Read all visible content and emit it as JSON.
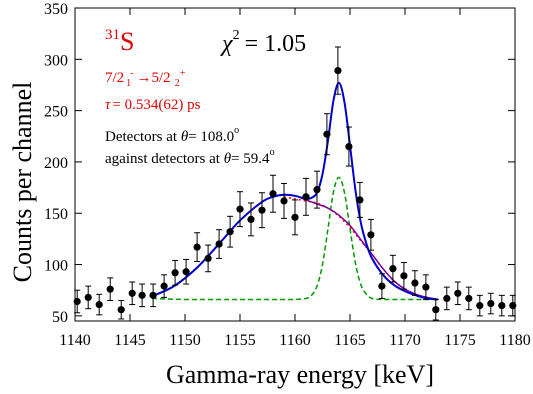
{
  "chart_data": {
    "type": "scatter",
    "xlabel": "Gamma-ray energy [keV]",
    "ylabel": "Counts per channel",
    "xlim": [
      1140,
      1180
    ],
    "ylim": [
      45,
      350
    ],
    "xticks": [
      1140,
      1145,
      1150,
      1155,
      1160,
      1165,
      1170,
      1175,
      1180
    ],
    "yticks": [
      50,
      100,
      150,
      200,
      250,
      300,
      350
    ],
    "grid": false,
    "annotations": {
      "nucleus_mass": "31",
      "nucleus_symbol": "S",
      "transition_a": "7/2",
      "transition_a_sub": "1",
      "transition_a_sup": "-",
      "arrow": "→",
      "transition_b": "5/2",
      "transition_b_sub": "2",
      "transition_b_sup": "+",
      "tau_symbol": "τ",
      "tau_value": "= 0.534(62) ps",
      "chi_symbol": "χ",
      "chi_exp": "2",
      "chi_value": "= 1.05",
      "det_line1_prefix": "Detectors at ",
      "det_line1_theta": "θ",
      "det_line1_value": "= 108.0",
      "det_line1_deg": "o",
      "det_line2_prefix": "against detectors at ",
      "det_line2_theta": "θ",
      "det_line2_value": "= 59.4",
      "det_line2_deg": "o"
    },
    "colors": {
      "total_fit": "#0000cc",
      "background": "#7a0099",
      "dsam_component": "#ff0000",
      "peak_component": "#009900",
      "data": "#000000",
      "annotation_red": "#e00000"
    },
    "series": [
      {
        "key": "data",
        "kind": "points_with_errors",
        "x": [
          1140.2,
          1141.2,
          1142.2,
          1143.2,
          1144.2,
          1145.2,
          1146.1,
          1147.1,
          1148.1,
          1149.1,
          1150.1,
          1151.1,
          1152.1,
          1153.1,
          1154.1,
          1155.0,
          1156.0,
          1157.0,
          1158.0,
          1159.0,
          1160.0,
          1161.0,
          1162.0,
          1162.9,
          1163.9,
          1164.9,
          1165.9,
          1166.9,
          1167.9,
          1168.9,
          1169.9,
          1170.9,
          1171.9,
          1172.8,
          1173.8,
          1174.8,
          1175.8,
          1176.8,
          1177.8,
          1178.8,
          1179.8
        ],
        "y": [
          64,
          68,
          61,
          76,
          56,
          72,
          70,
          70,
          79,
          92,
          93,
          117,
          106,
          120,
          132,
          154,
          144,
          153,
          169,
          162,
          146,
          166,
          173,
          227,
          289,
          215,
          163,
          129,
          79,
          96,
          89,
          82,
          78,
          56,
          67,
          72,
          67,
          60,
          62,
          60,
          60
        ],
        "err": [
          11,
          11,
          10,
          11,
          9,
          11,
          11,
          11,
          11,
          12,
          12,
          14,
          13,
          14,
          15,
          17,
          16,
          17,
          18,
          17,
          17,
          18,
          18,
          20,
          23,
          19,
          17,
          15,
          12,
          13,
          13,
          12,
          12,
          10,
          11,
          11,
          11,
          10,
          10,
          10,
          10
        ]
      },
      {
        "key": "total_fit",
        "kind": "line",
        "style": "solid",
        "x": [
          1147,
          1149,
          1151,
          1153,
          1155,
          1157,
          1158,
          1159,
          1160,
          1161,
          1161.5,
          1162,
          1162.5,
          1163,
          1163.5,
          1164,
          1164.5,
          1165,
          1165.5,
          1166,
          1166.5,
          1167,
          1168,
          1169,
          1170,
          1171,
          1172,
          1173
        ],
        "y": [
          69,
          79,
          96,
          119,
          143,
          161,
          166,
          168,
          167,
          164,
          165,
          170,
          188,
          221,
          260,
          277,
          258,
          216,
          172,
          140,
          120,
          106,
          90,
          80,
          74,
          70,
          67,
          66
        ]
      },
      {
        "key": "background",
        "kind": "line",
        "style": "solid",
        "x": [
          1147,
          1149,
          1151,
          1153,
          1155,
          1157,
          1158,
          1159,
          1160,
          1161,
          1162,
          1163,
          1164,
          1165,
          1166,
          1167,
          1168,
          1169,
          1170,
          1171,
          1172,
          1173
        ],
        "y": [
          69,
          79,
          96,
          119,
          143,
          161,
          166,
          168,
          167,
          163,
          159,
          155,
          148,
          138,
          124,
          110,
          96,
          84,
          76,
          71,
          68,
          66
        ]
      },
      {
        "key": "dsam_component",
        "kind": "line",
        "style": "dotted",
        "x": [
          1159,
          1160,
          1161,
          1162,
          1163,
          1164,
          1165,
          1166,
          1167,
          1168,
          1169,
          1170
        ],
        "y": [
          166,
          164,
          162,
          160,
          155,
          147,
          136,
          123,
          110,
          96,
          84,
          76
        ]
      },
      {
        "key": "peak_component",
        "kind": "line",
        "style": "dashed",
        "x": [
          1147,
          1150,
          1155,
          1158,
          1160,
          1161,
          1161.5,
          1162,
          1162.5,
          1163,
          1163.5,
          1164,
          1164.5,
          1165,
          1165.5,
          1166,
          1166.5,
          1167,
          1168,
          1170,
          1172,
          1173
        ],
        "y": [
          67,
          66,
          66,
          66,
          66,
          67,
          70,
          79,
          100,
          135,
          171,
          185,
          170,
          135,
          101,
          80,
          71,
          67,
          66,
          66,
          66,
          66
        ]
      }
    ]
  }
}
